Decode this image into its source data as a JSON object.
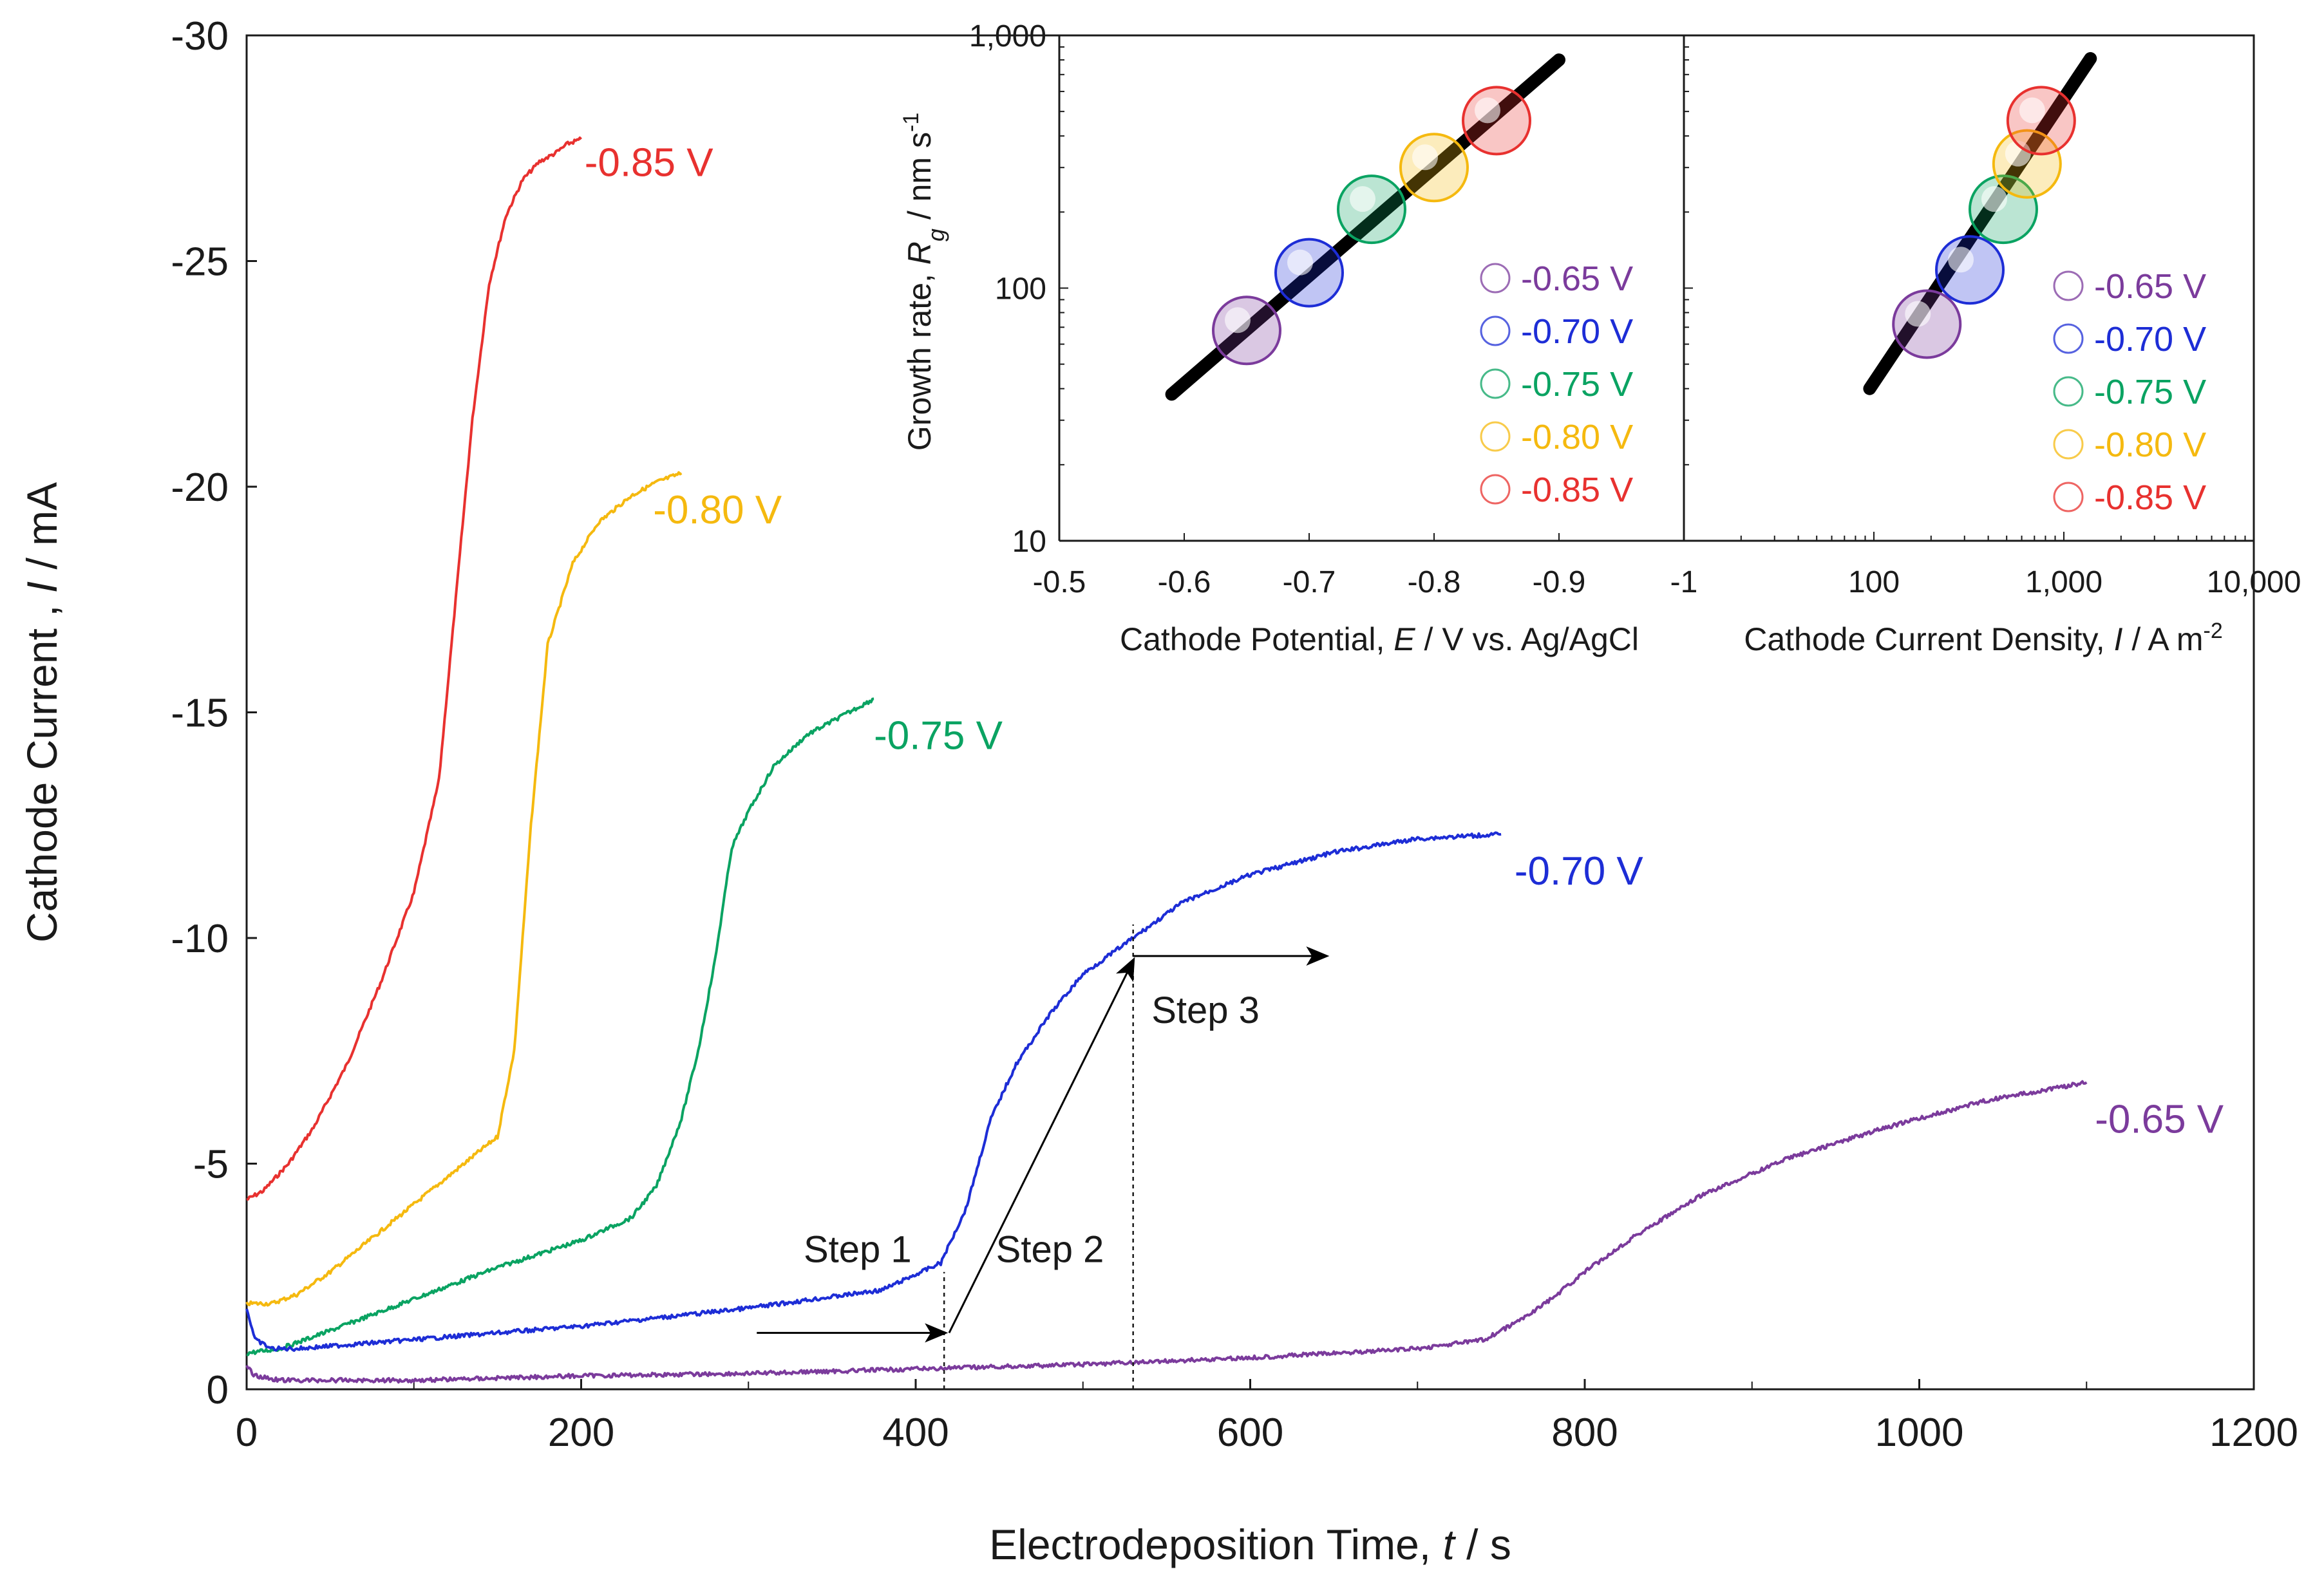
{
  "chart_data": [
    {
      "type": "line",
      "id": "main",
      "xlabel_prefix": "Electrodeposition Time, ",
      "xlabel_var": "t",
      "xlabel_unit": " / s",
      "ylabel_prefix": "Cathode Current , ",
      "ylabel_var": "I",
      "ylabel_unit": " / mA",
      "xlim": [
        0,
        1200
      ],
      "ylim": [
        0,
        -30
      ],
      "xticks": [
        0,
        200,
        400,
        600,
        800,
        1000,
        1200
      ],
      "yticks": [
        0,
        -5,
        -10,
        -15,
        -20,
        -25,
        -30
      ],
      "ytick_labels": [
        "0",
        "-5",
        "-10",
        "-15",
        "-20",
        "-25",
        "-30"
      ],
      "series": [
        {
          "name": "-0.85 V",
          "color": "#e8312f",
          "x": [
            0,
            10,
            25,
            40,
            60,
            80,
            100,
            115,
            125,
            135,
            145,
            155,
            165,
            175,
            185,
            192,
            200
          ],
          "y": [
            -4.2,
            -4.4,
            -5.0,
            -5.8,
            -7.2,
            -9.0,
            -11.0,
            -13.5,
            -17.5,
            -21.5,
            -24.5,
            -26.0,
            -26.8,
            -27.2,
            -27.4,
            -27.6,
            -27.7
          ]
        },
        {
          "name": "-0.80 V",
          "color": "#f5b90f",
          "x": [
            0,
            15,
            30,
            50,
            70,
            90,
            110,
            130,
            150,
            160,
            170,
            180,
            195,
            210,
            230,
            245,
            260
          ],
          "y": [
            -1.9,
            -1.9,
            -2.1,
            -2.6,
            -3.2,
            -3.8,
            -4.4,
            -5.0,
            -5.6,
            -7.5,
            -12.5,
            -16.5,
            -18.3,
            -19.2,
            -19.8,
            -20.1,
            -20.3
          ]
        },
        {
          "name": "-0.75 V",
          "color": "#0aa362",
          "x": [
            0,
            20,
            50,
            100,
            150,
            200,
            230,
            245,
            260,
            270,
            280,
            290,
            300,
            315,
            335,
            355,
            375
          ],
          "y": [
            -0.8,
            -0.9,
            -1.3,
            -2.0,
            -2.7,
            -3.3,
            -3.8,
            -4.5,
            -6.0,
            -7.5,
            -9.5,
            -12.0,
            -12.8,
            -13.8,
            -14.5,
            -14.9,
            -15.3
          ]
        },
        {
          "name": "-0.70 V",
          "color": "#1d2dd6",
          "x": [
            0,
            5,
            15,
            30,
            100,
            200,
            300,
            380,
            415,
            430,
            445,
            460,
            480,
            500,
            530,
            560,
            600,
            650,
            700,
            750
          ],
          "y": [
            -1.8,
            -1.1,
            -0.9,
            -0.9,
            -1.1,
            -1.4,
            -1.8,
            -2.2,
            -2.8,
            -4.0,
            -6.0,
            -7.2,
            -8.3,
            -9.2,
            -10.0,
            -10.8,
            -11.4,
            -11.9,
            -12.2,
            -12.3
          ]
        },
        {
          "name": "-0.65 V",
          "color": "#7b3b9c",
          "x": [
            0,
            5,
            20,
            100,
            200,
            300,
            400,
            500,
            600,
            700,
            740,
            760,
            780,
            800,
            830,
            870,
            920,
            980,
            1040,
            1100
          ],
          "y": [
            -0.5,
            -0.3,
            -0.2,
            -0.2,
            -0.3,
            -0.35,
            -0.45,
            -0.55,
            -0.7,
            -0.9,
            -1.1,
            -1.5,
            -2.0,
            -2.6,
            -3.4,
            -4.3,
            -5.1,
            -5.8,
            -6.4,
            -6.8
          ]
        }
      ],
      "curve_labels": [
        {
          "text": "-0.85 V",
          "color": "#e8312f",
          "x": 202,
          "y": -27.2
        },
        {
          "text": "-0.80 V",
          "color": "#f5b90f",
          "x": 243,
          "y": -19.5
        },
        {
          "text": "-0.75 V",
          "color": "#0aa362",
          "x": 375,
          "y": -14.5
        },
        {
          "text": "-0.70 V",
          "color": "#1d2dd6",
          "x": 758,
          "y": -11.5
        },
        {
          "text": "-0.65 V",
          "color": "#7b3b9c",
          "x": 1105,
          "y": -6.0
        }
      ],
      "annotations": {
        "step1": {
          "text": "Step 1",
          "x": 333,
          "y": -3.1
        },
        "step2": {
          "text": "Step 2",
          "x": 448,
          "y": -3.1
        },
        "step3": {
          "text": "Step 3",
          "x": 541,
          "y": -8.4
        },
        "dashed_lines": [
          {
            "x": 417,
            "y_from": 0,
            "y_to": -2.6
          },
          {
            "x": 530,
            "y_from": 0,
            "y_to": -10.3
          }
        ],
        "arrows": [
          {
            "x1": 305,
            "y1": -1.25,
            "x2": 417,
            "y2": -1.25
          },
          {
            "x1": 420,
            "y1": -1.25,
            "x2": 530,
            "y2": -9.5
          },
          {
            "x1": 530,
            "y1": -9.6,
            "x2": 645,
            "y2": -9.6
          }
        ]
      }
    },
    {
      "type": "scatter",
      "id": "inset-left",
      "xlabel_prefix": "Cathode Potential, ",
      "xlabel_var": "E",
      "xlabel_unit": " / V vs. Ag/AgCl",
      "ylabel_prefix": "Growth rate, ",
      "ylabel_var": "R",
      "ylabel_sub": "g",
      "ylabel_unit": " / nm s",
      "ylabel_sup": "-1",
      "yscale": "log",
      "xlim": [
        -0.5,
        -1.0
      ],
      "ylim": [
        10,
        1000
      ],
      "xticks": [
        -0.5,
        -0.6,
        -0.7,
        -0.8,
        -0.9,
        -1.0
      ],
      "xtick_labels": [
        "-0.5",
        "-0.6",
        "-0.7",
        "-0.8",
        "-0.9",
        "-1"
      ],
      "yticks": [
        10,
        100,
        1000
      ],
      "ytick_labels": [
        "10",
        "100",
        "1,000"
      ],
      "fit_line": {
        "x": [
          -0.59,
          -0.9
        ],
        "y": [
          38,
          800
        ]
      },
      "points": [
        {
          "name": "-0.65 V",
          "x": -0.65,
          "y": 68,
          "color": "#7b3b9c"
        },
        {
          "name": "-0.70 V",
          "x": -0.7,
          "y": 115,
          "color": "#1d2dd6"
        },
        {
          "name": "-0.75 V",
          "x": -0.75,
          "y": 205,
          "color": "#0aa362"
        },
        {
          "name": "-0.80 V",
          "x": -0.8,
          "y": 300,
          "color": "#f5b90f"
        },
        {
          "name": "-0.85 V",
          "x": -0.85,
          "y": 460,
          "color": "#e8312f"
        }
      ]
    },
    {
      "type": "scatter",
      "id": "inset-right",
      "xlabel_prefix": "Cathode Current Density, ",
      "xlabel_var": "I",
      "xlabel_unit": "  /  A m",
      "xlabel_sup": "-2",
      "xscale": "log",
      "yscale": "log",
      "xlim": [
        10,
        10000
      ],
      "ylim": [
        10,
        1000
      ],
      "xticks": [
        100,
        1000,
        10000
      ],
      "xtick_labels": [
        "100",
        "1,000",
        "10,000"
      ],
      "fit_line": {
        "x": [
          95,
          1380
        ],
        "y": [
          40,
          810
        ]
      },
      "points": [
        {
          "name": "-0.65 V",
          "x": 190,
          "y": 72,
          "color": "#7b3b9c"
        },
        {
          "name": "-0.70 V",
          "x": 320,
          "y": 118,
          "color": "#1d2dd6"
        },
        {
          "name": "-0.75 V",
          "x": 480,
          "y": 205,
          "color": "#0aa362"
        },
        {
          "name": "-0.80 V",
          "x": 640,
          "y": 310,
          "color": "#f5b90f"
        },
        {
          "name": "-0.85 V",
          "x": 760,
          "y": 460,
          "color": "#e8312f"
        }
      ]
    }
  ],
  "legend": [
    {
      "label": "-0.65 V",
      "color": "#7b3b9c"
    },
    {
      "label": "-0.70 V",
      "color": "#1d2dd6"
    },
    {
      "label": "-0.75 V",
      "color": "#0aa362"
    },
    {
      "label": "-0.80 V",
      "color": "#f5b90f"
    },
    {
      "label": "-0.85 V",
      "color": "#e8312f"
    }
  ]
}
